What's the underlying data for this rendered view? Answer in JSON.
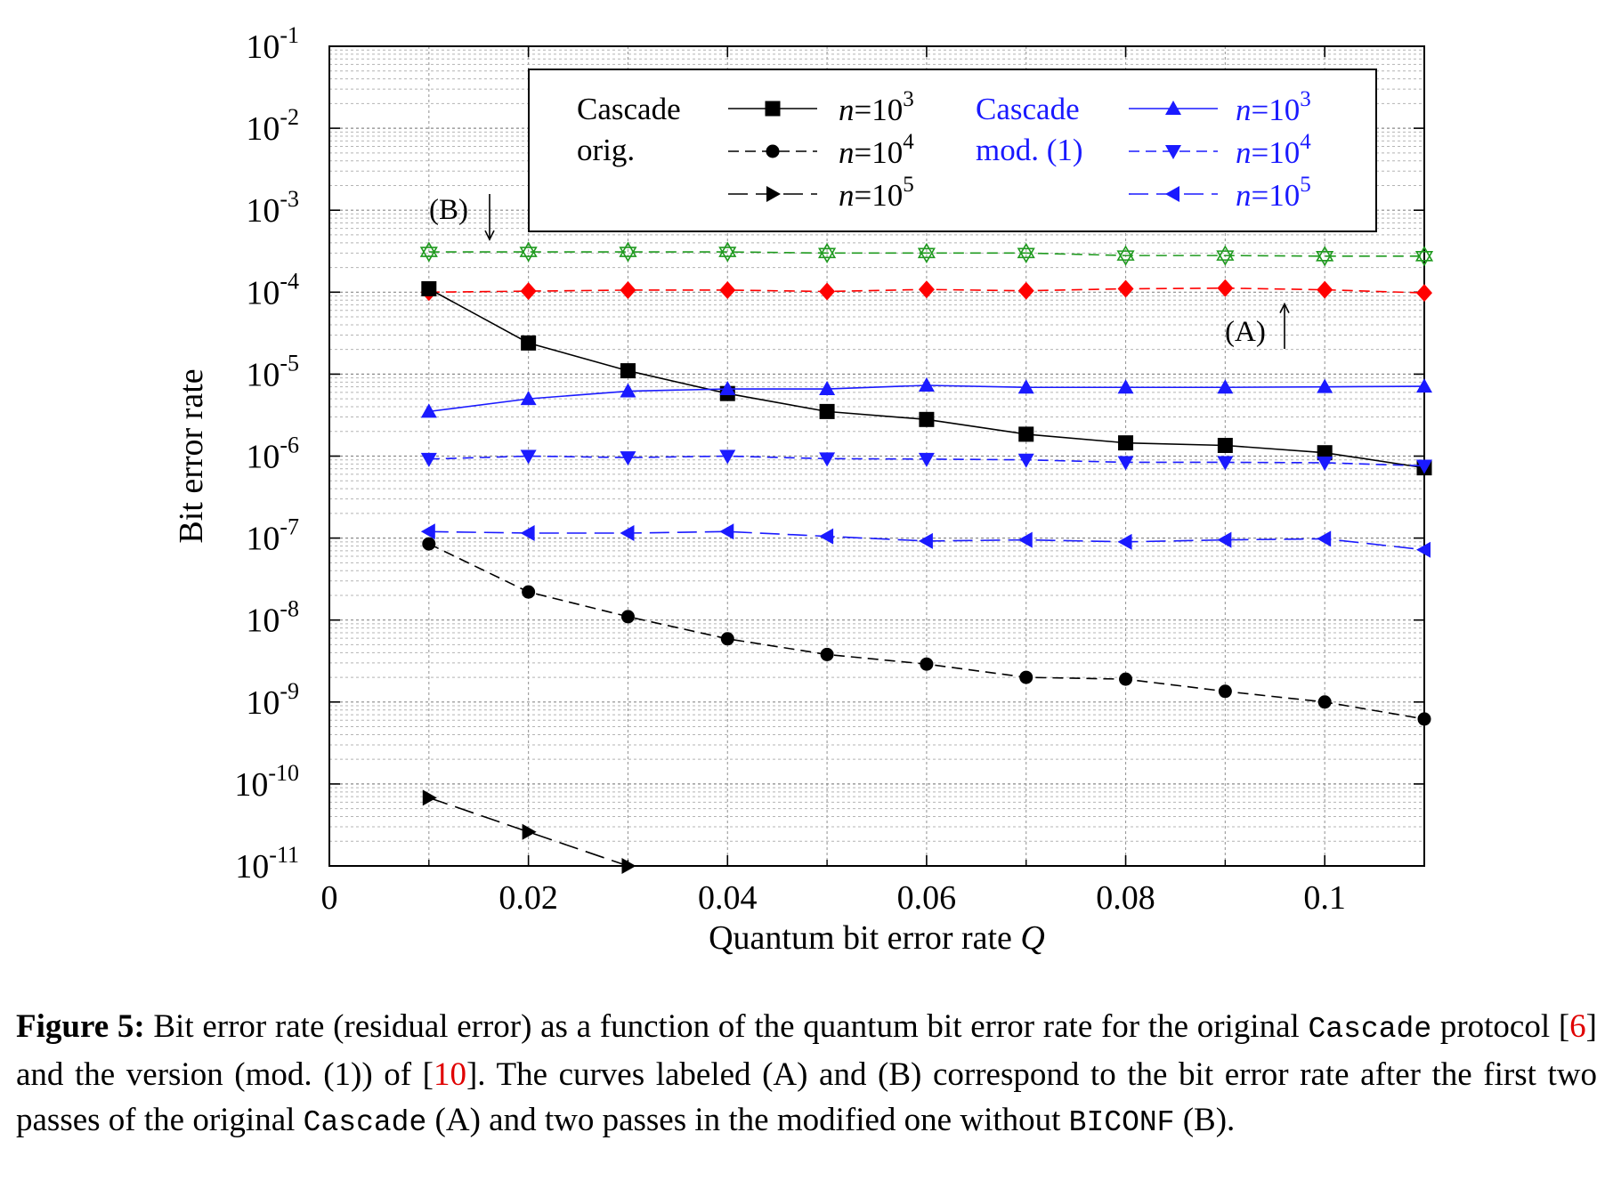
{
  "chart_data": {
    "type": "line",
    "xlabel_text": "Quantum bit error rate ",
    "xlabel_var": "Q",
    "ylabel": "Bit error rate",
    "xlim": [
      0,
      0.11
    ],
    "ylim_exp": [
      -11,
      -1
    ],
    "yscale": "log",
    "x_ticks": [
      0,
      0.02,
      0.04,
      0.06,
      0.08,
      0.1
    ],
    "x_tick_labels": [
      "0",
      "0.02",
      "0.04",
      "0.06",
      "0.08",
      "0.1"
    ],
    "y_ticks": [
      {
        "base": "10",
        "exp": "-1",
        "value": -1
      },
      {
        "base": "10",
        "exp": "-2",
        "value": -2
      },
      {
        "base": "10",
        "exp": "-3",
        "value": -3
      },
      {
        "base": "10",
        "exp": "-4",
        "value": -4
      },
      {
        "base": "10",
        "exp": "-5",
        "value": -5
      },
      {
        "base": "10",
        "exp": "-6",
        "value": -6
      },
      {
        "base": "10",
        "exp": "-7",
        "value": -7
      },
      {
        "base": "10",
        "exp": "-8",
        "value": -8
      },
      {
        "base": "10",
        "exp": "-9",
        "value": -9
      },
      {
        "base": "10",
        "exp": "-10",
        "value": -10
      },
      {
        "base": "10",
        "exp": "-11",
        "value": -11
      }
    ],
    "grid": true,
    "x": [
      0.01,
      0.02,
      0.03,
      0.04,
      0.05,
      0.06,
      0.07,
      0.08,
      0.09,
      0.1,
      0.11
    ],
    "series": [
      {
        "name": "Cascade orig. n=10^3",
        "color": "#000000",
        "marker": "square",
        "dash": "solid",
        "values": [
          0.00011,
          2.4e-05,
          1.1e-05,
          5.8e-06,
          3.5e-06,
          2.8e-06,
          1.85e-06,
          1.45e-06,
          1.35e-06,
          1.1e-06,
          7.2e-07
        ]
      },
      {
        "name": "Cascade orig. n=10^4",
        "color": "#000000",
        "marker": "circle",
        "dash": "dashed",
        "values": [
          8.5e-08,
          2.2e-08,
          1.1e-08,
          5.9e-09,
          3.8e-09,
          2.9e-09,
          2e-09,
          1.9e-09,
          1.35e-09,
          1e-09,
          6.2e-10
        ]
      },
      {
        "name": "Cascade orig. n=10^5",
        "color": "#000000",
        "marker": "triangle-right",
        "dash": "long-dash",
        "values": [
          6.8e-11,
          2.6e-11,
          1e-11,
          null,
          null,
          null,
          null,
          null,
          null,
          null,
          null
        ]
      },
      {
        "name": "Cascade mod. (1) n=10^3",
        "color": "#1a1aff",
        "marker": "triangle-up",
        "dash": "solid",
        "values": [
          3.5e-06,
          5e-06,
          6.2e-06,
          6.6e-06,
          6.6e-06,
          7.3e-06,
          6.9e-06,
          6.9e-06,
          6.9e-06,
          7e-06,
          7.1e-06
        ]
      },
      {
        "name": "Cascade mod. (1) n=10^4",
        "color": "#1a1aff",
        "marker": "triangle-down",
        "dash": "dashed",
        "values": [
          9.2e-07,
          1e-06,
          9.6e-07,
          1e-06,
          9.3e-07,
          9.2e-07,
          9e-07,
          8.4e-07,
          8.4e-07,
          8.3e-07,
          7.6e-07
        ]
      },
      {
        "name": "Cascade mod. (1) n=10^5",
        "color": "#1a1aff",
        "marker": "triangle-left",
        "dash": "long-dash",
        "values": [
          1.2e-07,
          1.15e-07,
          1.15e-07,
          1.2e-07,
          1.05e-07,
          9.2e-08,
          9.5e-08,
          9e-08,
          9.5e-08,
          9.8e-08,
          7.2e-08
        ]
      },
      {
        "name": "(A) first two passes of original Cascade",
        "color": "#ff0000",
        "marker": "diamond",
        "dash": "dashed",
        "values": [
          0.0001,
          0.000103,
          0.000106,
          0.000106,
          0.000102,
          0.000108,
          0.000104,
          0.00011,
          0.000112,
          0.000107,
          9.8e-05
        ]
      },
      {
        "name": "(B) two passes modified without BICONF",
        "color": "#1f9a1f",
        "marker": "star",
        "dash": "dashed",
        "values": [
          0.00031,
          0.00031,
          0.00031,
          0.00031,
          0.0003,
          0.0003,
          0.0003,
          0.00028,
          0.00028,
          0.000275,
          0.000275
        ]
      }
    ],
    "legend": {
      "orig_line1": "Cascade",
      "orig_line2": "orig.",
      "mod_line1": "Cascade",
      "mod_line2": "mod. (1)",
      "n_var": "n",
      "n_eq": "=10",
      "n_exps": [
        "3",
        "4",
        "5"
      ]
    },
    "annotations": {
      "A": "(A)",
      "B": "(B)"
    }
  },
  "caption": {
    "figure_label": "Figure 5:",
    "t1": " Bit error rate (residual error) as a function of the quantum bit error rate for the original ",
    "code1": "Cascade",
    "t2": " protocol [",
    "ref1": "6",
    "t3": "] and the version (mod. (1)) of [",
    "ref2": "10",
    "t4": "]. The curves labeled (A) and (B) correspond to the bit error rate after the first two passes of the original ",
    "code2": "Cascade",
    "t5": " (A) and two passes in the modified one without ",
    "code3": "BICONF",
    "t6": " (B)."
  }
}
